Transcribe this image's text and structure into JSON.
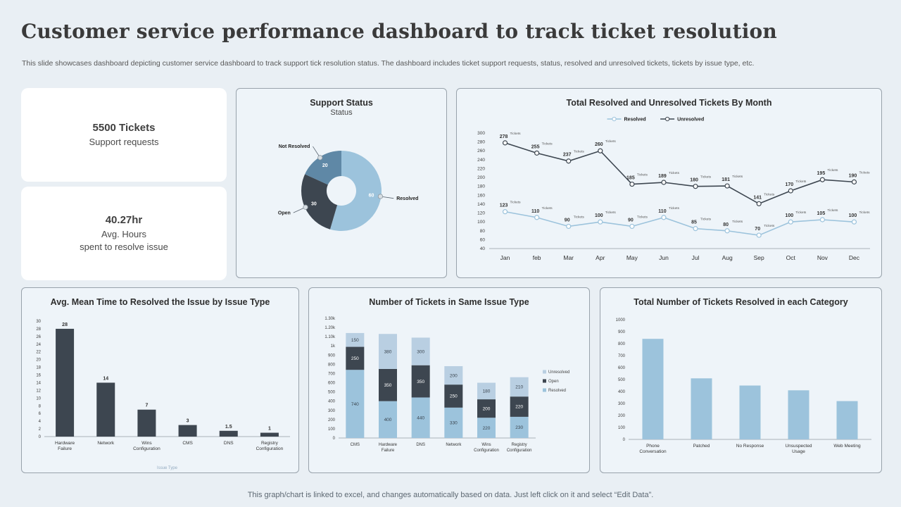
{
  "page": {
    "title": "Customer service performance dashboard to track ticket resolution",
    "subtitle": "This slide showcases dashboard depicting customer service dashboard to track support tick resolution status. The dashboard includes ticket support requests, status, resolved and unresolved tickets, tickets by issue type, etc.",
    "footer": "This graph/chart is linked to excel, and changes automatically based on data. Just left click on it and select “Edit Data”."
  },
  "kpis": [
    {
      "value": "5500 Tickets",
      "lines": [
        "Support requests"
      ]
    },
    {
      "value": "40.27hr",
      "lines": [
        "Avg. Hours",
        "spent to resolve issue"
      ]
    }
  ],
  "colors": {
    "resolved_blue": "#9cc3dc",
    "open_dark": "#3d4650",
    "not_resolved_steel": "#5f88a6",
    "unresolved_pale": "#b9cfe2",
    "background": "#e9eff4"
  },
  "chart_data": [
    {
      "id": "support_status",
      "type": "pie",
      "title": "Support Status",
      "subtitle": "Status",
      "donut": true,
      "slices": [
        {
          "label": "Resolved",
          "value": 60,
          "color": "#9cc3dc"
        },
        {
          "label": "Open",
          "value": 30,
          "color": "#3d4650"
        },
        {
          "label": "Not Resolved",
          "value": 20,
          "color": "#5f88a6"
        }
      ]
    },
    {
      "id": "monthly",
      "type": "line",
      "title": "Total Resolved and Unresolved Tickets By Month",
      "categories": [
        "Jan",
        "feb",
        "Mar",
        "Apr",
        "May",
        "Jun",
        "Jul",
        "Aug",
        "Sep",
        "Oct",
        "Nov",
        "Dec"
      ],
      "series": [
        {
          "name": "Resolved",
          "color": "#9cc3dc",
          "values": [
            123,
            110,
            90,
            100,
            90,
            110,
            85,
            80,
            70,
            100,
            105,
            100
          ]
        },
        {
          "name": "Unresolved",
          "color": "#3d4650",
          "values": [
            278,
            255,
            237,
            260,
            185,
            189,
            180,
            181,
            141,
            170,
            195,
            190
          ]
        }
      ],
      "point_label_suffix": "Tickets",
      "ylim": [
        40,
        300
      ],
      "ytick_step": 20,
      "legend_position": "top"
    },
    {
      "id": "mean_time",
      "type": "bar",
      "title": "Avg. Mean Time to Resolved the Issue by Issue Type",
      "categories": [
        "Hardware Failure",
        "Network",
        "Wins Configuration",
        "CMS",
        "DNS",
        "Registry Configuration"
      ],
      "values": [
        28,
        14,
        7,
        3,
        1.5,
        1
      ],
      "bar_color": "#3d4650",
      "xlabel": "Issue Type",
      "ylim": [
        0,
        30
      ],
      "ytick_step": 2
    },
    {
      "id": "same_issue",
      "type": "stacked-bar",
      "title": "Number of Tickets in Same Issue Type",
      "categories": [
        "CMS",
        "Hardware Failure",
        "DNS",
        "Network",
        "Wins Configuration",
        "Registry Configuration"
      ],
      "series": [
        {
          "name": "Resolved",
          "color": "#9cc3dc",
          "values": [
            740,
            400,
            440,
            330,
            220,
            230
          ]
        },
        {
          "name": "Open",
          "color": "#3d4650",
          "values": [
            250,
            350,
            350,
            250,
            200,
            220
          ]
        },
        {
          "name": "Unresolved",
          "color": "#b9cfe2",
          "values": [
            150,
            380,
            300,
            200,
            180,
            210
          ]
        }
      ],
      "legend_order": [
        "Unresolved",
        "Open",
        "Resolved"
      ],
      "legend_position": "right",
      "ylim": [
        0,
        1300
      ],
      "yticks": [
        "0",
        "100",
        "200",
        "300",
        "400",
        "500",
        "600",
        "700",
        "800",
        "900",
        "1k",
        "1.10k",
        "1.20k",
        "1.30k"
      ]
    },
    {
      "id": "category",
      "type": "bar",
      "title": "Total Number of Tickets Resolved in each Category",
      "categories": [
        "Phone Conversation",
        "Patched",
        "No Response",
        "Unsuspected Usage",
        "Web Meeting"
      ],
      "values": [
        840,
        510,
        450,
        410,
        320
      ],
      "bar_color": "#9cc3dc",
      "ylim": [
        0,
        1000
      ],
      "ytick_step": 100
    }
  ]
}
